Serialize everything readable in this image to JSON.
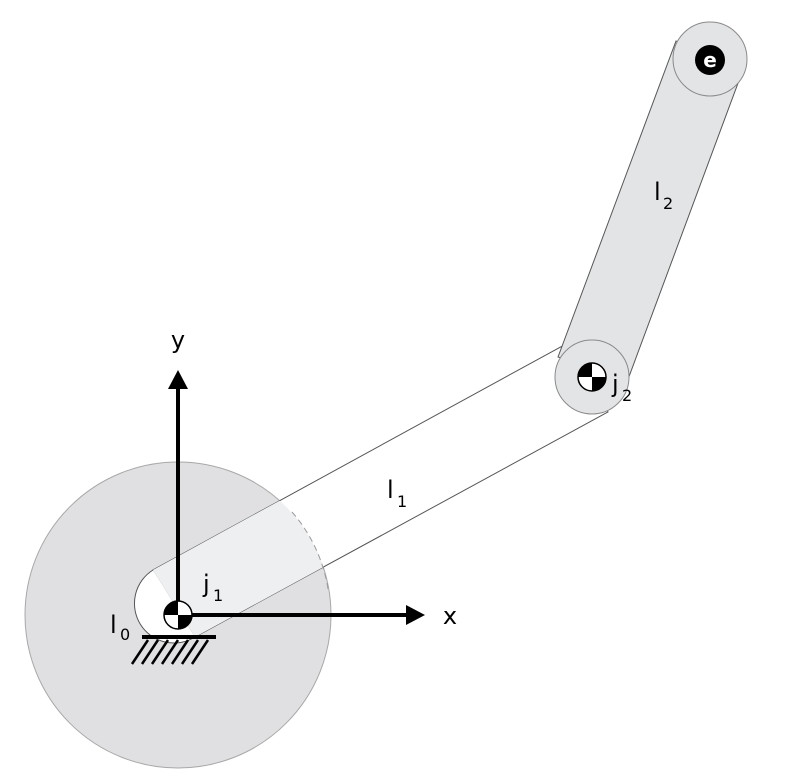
{
  "labels": {
    "y_axis": "y",
    "x_axis": "x",
    "link0": {
      "main": "l",
      "sub": "0"
    },
    "link1": {
      "main": "l",
      "sub": "1"
    },
    "link2": {
      "main": "l",
      "sub": "2"
    },
    "joint1": {
      "main": "j",
      "sub": "1"
    },
    "joint2": {
      "main": "j",
      "sub": "2"
    },
    "end_effector": "e"
  },
  "colors": {
    "base_disk": "#e0e0e2",
    "link1_fill": "#ffffff",
    "link1_inner": "#eeeff1",
    "link2_fill": "#e3e4e6",
    "outline": "#a8a8a8",
    "link_stroke": "#555555",
    "axis": "#000000"
  },
  "icons": {
    "joint_marker": "center-of-mass-icon",
    "ground": "ground-hatch-icon"
  }
}
